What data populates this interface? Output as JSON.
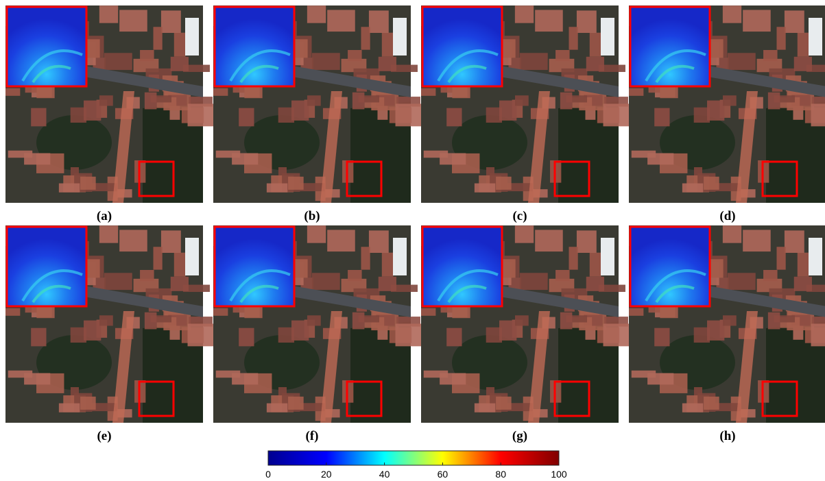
{
  "panels": [
    {
      "caption": "(a)"
    },
    {
      "caption": "(b)"
    },
    {
      "caption": "(c)"
    },
    {
      "caption": "(d)"
    },
    {
      "caption": "(e)"
    },
    {
      "caption": "(f)"
    },
    {
      "caption": "(g)"
    },
    {
      "caption": "(h)"
    }
  ],
  "colorbar": {
    "lim": [
      0,
      100
    ],
    "ticks": [
      0,
      20,
      40,
      60,
      80,
      100
    ],
    "colors": [
      "#00008f",
      "#0000ff",
      "#00ffff",
      "#ffff00",
      "#ff0000",
      "#800000"
    ]
  }
}
